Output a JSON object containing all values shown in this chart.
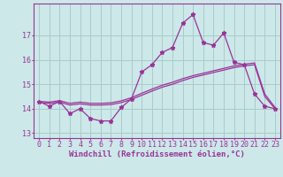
{
  "background_color": "#cce8e8",
  "grid_color": "#aacccc",
  "line_color": "#993399",
  "marker_color": "#993399",
  "xlabel": "Windchill (Refroidissement éolien,°C)",
  "xlabel_fontsize": 6.5,
  "tick_fontsize": 6.0,
  "xlim": [
    -0.5,
    23.5
  ],
  "ylim": [
    12.8,
    18.3
  ],
  "yticks": [
    13,
    14,
    15,
    16,
    17
  ],
  "xticks": [
    0,
    1,
    2,
    3,
    4,
    5,
    6,
    7,
    8,
    9,
    10,
    11,
    12,
    13,
    14,
    15,
    16,
    17,
    18,
    19,
    20,
    21,
    22,
    23
  ],
  "series1": [
    14.3,
    14.1,
    14.3,
    13.8,
    14.0,
    13.6,
    13.5,
    13.5,
    14.05,
    14.4,
    15.5,
    15.8,
    16.3,
    16.5,
    17.5,
    17.85,
    16.7,
    16.6,
    17.1,
    15.9,
    15.8,
    14.6,
    14.1,
    14.0
  ],
  "series2": [
    14.25,
    14.22,
    14.27,
    14.15,
    14.2,
    14.15,
    14.15,
    14.17,
    14.25,
    14.38,
    14.55,
    14.72,
    14.88,
    15.0,
    15.15,
    15.28,
    15.38,
    15.48,
    15.58,
    15.68,
    15.75,
    15.8,
    14.5,
    14.0
  ],
  "series3": [
    14.3,
    14.27,
    14.33,
    14.22,
    14.27,
    14.22,
    14.22,
    14.24,
    14.32,
    14.45,
    14.63,
    14.8,
    14.96,
    15.08,
    15.23,
    15.35,
    15.45,
    15.55,
    15.65,
    15.75,
    15.82,
    15.87,
    14.6,
    14.05
  ]
}
